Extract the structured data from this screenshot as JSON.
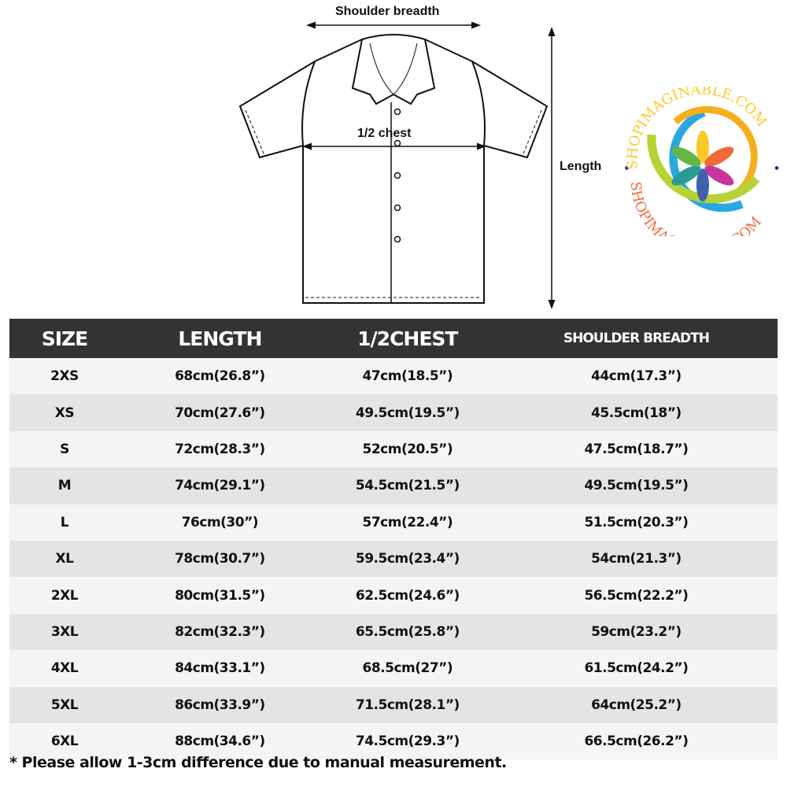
{
  "diagram": {
    "shoulder_label": "Shoulder breadth",
    "chest_label": "1/2 chest",
    "length_label": "Length"
  },
  "table": {
    "headers": [
      "SIZE",
      "LENGTH",
      "1/2CHEST",
      "SHOULDER BREADTH"
    ],
    "rows": [
      [
        "2XS",
        "68cm(26.8”)",
        "47cm(18.5”)",
        "44cm(17.3”)"
      ],
      [
        "XS",
        "70cm(27.6”)",
        "49.5cm(19.5”)",
        "45.5cm(18”)"
      ],
      [
        "S",
        "72cm(28.3”)",
        "52cm(20.5”)",
        "47.5cm(18.7”)"
      ],
      [
        "M",
        "74cm(29.1”)",
        "54.5cm(21.5”)",
        "49.5cm(19.5”)"
      ],
      [
        "L",
        "76cm(30”)",
        "57cm(22.4”)",
        "51.5cm(20.3”)"
      ],
      [
        "XL",
        "78cm(30.7”)",
        "59.5cm(23.4”)",
        "54cm(21.3”)"
      ],
      [
        "2XL",
        "80cm(31.5”)",
        "62.5cm(24.6”)",
        "56.5cm(22.2”)"
      ],
      [
        "3XL",
        "82cm(32.3”)",
        "65.5cm(25.8”)",
        "59cm(23.2”)"
      ],
      [
        "4XL",
        "84cm(33.1”)",
        "68.5cm(27”)",
        "61.5cm(24.2”)"
      ],
      [
        "5XL",
        "86cm(33.9”)",
        "71.5cm(28.1”)",
        "64cm(25.2”)"
      ],
      [
        "6XL",
        "88cm(34.6”)",
        "74.5cm(29.3”)",
        "66.5cm(26.2”)"
      ]
    ]
  },
  "note": "* Please allow 1-3cm difference due to manual measurement.",
  "watermark": {
    "text": "SHOPIMAGINABLE.COM",
    "colors": [
      "#29a8e0",
      "#f6ae1c",
      "#b5d334",
      "#f26b3a"
    ]
  }
}
